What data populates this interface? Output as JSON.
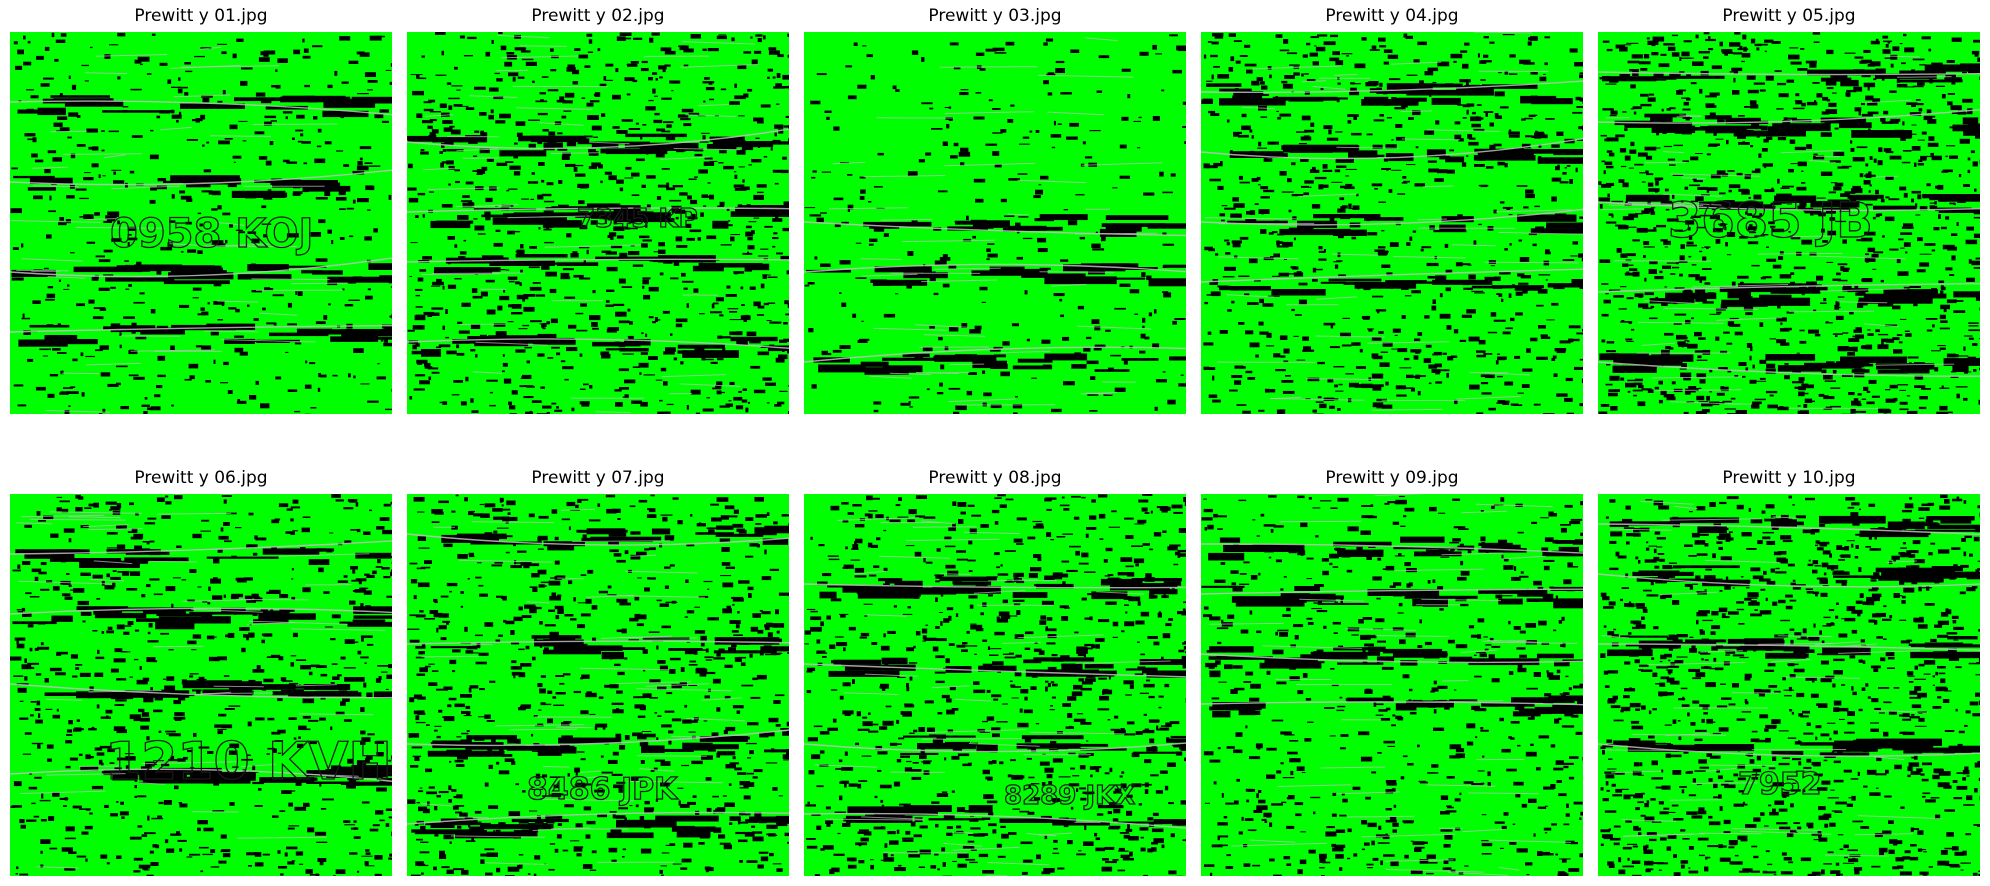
{
  "figure": {
    "panels": [
      {
        "title": "Prewitt y 01.jpg",
        "plate": "0958 KOJ"
      },
      {
        "title": "Prewitt y 02.jpg",
        "plate": "7345 KP"
      },
      {
        "title": "Prewitt y 03.jpg",
        "plate": ""
      },
      {
        "title": "Prewitt y 04.jpg",
        "plate": ""
      },
      {
        "title": "Prewitt y 05.jpg",
        "plate": "3685 JB"
      },
      {
        "title": "Prewitt y 06.jpg",
        "plate": "1210 KVH"
      },
      {
        "title": "Prewitt y 07.jpg",
        "plate": "8486 JPK"
      },
      {
        "title": "Prewitt y 08.jpg",
        "plate": "8289 JKX"
      },
      {
        "title": "Prewitt y 09.jpg",
        "plate": ""
      },
      {
        "title": "Prewitt y 10.jpg",
        "plate": "7952"
      }
    ],
    "colors": {
      "edge_fill": "#00ff00",
      "edge_dark": "#000000",
      "edge_line": "#bfbfbf"
    }
  }
}
